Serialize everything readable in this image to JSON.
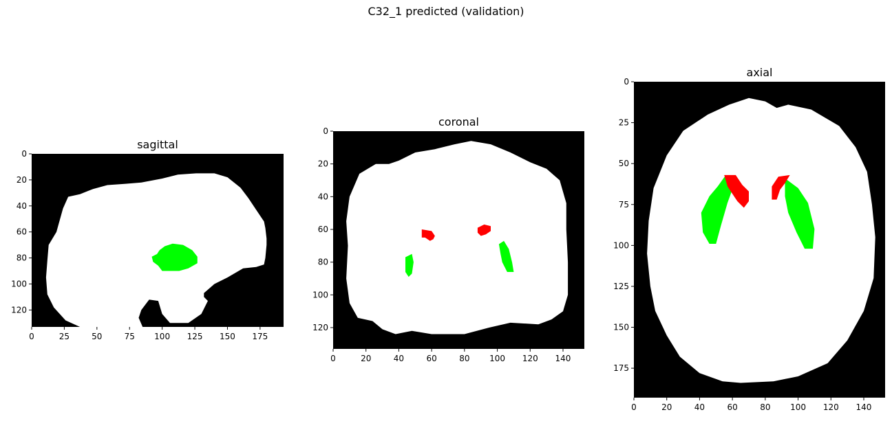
{
  "figure": {
    "title": "C32_1 predicted (validation)"
  },
  "colors": {
    "background": "#000000",
    "brain": "#ffffff",
    "label_red": "#ff0000",
    "label_green": "#00ff00"
  },
  "panels": [
    {
      "title": "sagittal",
      "xlim": [
        0,
        193
      ],
      "ylim": [
        133,
        0
      ],
      "xticks": [
        "0",
        "25",
        "50",
        "75",
        "100",
        "125",
        "150",
        "175"
      ],
      "yticks": [
        "0",
        "20",
        "40",
        "60",
        "80",
        "100",
        "120"
      ],
      "regions": [
        {
          "label": "brain",
          "color": "brain",
          "points": [
            [
              37,
              133
            ],
            [
              26,
              128
            ],
            [
              17,
              118
            ],
            [
              12,
              108
            ],
            [
              11,
              95
            ],
            [
              12,
              82
            ],
            [
              13,
              70
            ],
            [
              19,
              60
            ],
            [
              24,
              42
            ],
            [
              28,
              33
            ],
            [
              37,
              31
            ],
            [
              47,
              27
            ],
            [
              58,
              24
            ],
            [
              72,
              23
            ],
            [
              84,
              22
            ],
            [
              100,
              19
            ],
            [
              112,
              16
            ],
            [
              126,
              15
            ],
            [
              140,
              15
            ],
            [
              150,
              18
            ],
            [
              160,
              26
            ],
            [
              166,
              34
            ],
            [
              172,
              43
            ],
            [
              178,
              52
            ],
            [
              179,
              57
            ],
            [
              180,
              65
            ],
            [
              180,
              70
            ],
            [
              179,
              80
            ],
            [
              178,
              85
            ],
            [
              172,
              87
            ],
            [
              162,
              88
            ],
            [
              150,
              95
            ],
            [
              140,
              100
            ],
            [
              132,
              107
            ],
            [
              132,
              110
            ],
            [
              135,
              113
            ],
            [
              130,
              123
            ],
            [
              120,
              130
            ],
            [
              106,
              130
            ],
            [
              100,
              123
            ],
            [
              97,
              113
            ],
            [
              90,
              112
            ],
            [
              84,
              120
            ],
            [
              82,
              126
            ],
            [
              85,
              133
            ]
          ]
        },
        {
          "label": "green",
          "color": "label_green",
          "points": [
            [
              92,
              79
            ],
            [
              96,
              77
            ],
            [
              98,
              74
            ],
            [
              102,
              71
            ],
            [
              108,
              69
            ],
            [
              116,
              70
            ],
            [
              123,
              74
            ],
            [
              127,
              79
            ],
            [
              127,
              84
            ],
            [
              120,
              88
            ],
            [
              113,
              90
            ],
            [
              100,
              90
            ],
            [
              97,
              86
            ],
            [
              93,
              83
            ]
          ]
        }
      ]
    },
    {
      "title": "coronal",
      "xlim": [
        0,
        153
      ],
      "ylim": [
        133,
        0
      ],
      "xticks": [
        "0",
        "20",
        "40",
        "60",
        "80",
        "100",
        "120",
        "140"
      ],
      "yticks": [
        "0",
        "20",
        "40",
        "60",
        "80",
        "100",
        "120"
      ],
      "regions": [
        {
          "label": "brain",
          "color": "brain",
          "points": [
            [
              38,
              124
            ],
            [
              30,
              121
            ],
            [
              24,
              116
            ],
            [
              15,
              114
            ],
            [
              10,
              105
            ],
            [
              8,
              90
            ],
            [
              9,
              70
            ],
            [
              8,
              55
            ],
            [
              10,
              40
            ],
            [
              16,
              26
            ],
            [
              26,
              20
            ],
            [
              34,
              20
            ],
            [
              40,
              18
            ],
            [
              50,
              13
            ],
            [
              62,
              11
            ],
            [
              74,
              8
            ],
            [
              84,
              6
            ],
            [
              96,
              8
            ],
            [
              108,
              13
            ],
            [
              120,
              19
            ],
            [
              130,
              23
            ],
            [
              138,
              30
            ],
            [
              142,
              44
            ],
            [
              142,
              60
            ],
            [
              143,
              80
            ],
            [
              143,
              100
            ],
            [
              140,
              110
            ],
            [
              133,
              115
            ],
            [
              125,
              118
            ],
            [
              108,
              117
            ],
            [
              95,
              120
            ],
            [
              80,
              124
            ],
            [
              60,
              124
            ],
            [
              48,
              122
            ]
          ]
        },
        {
          "label": "red",
          "color": "label_red",
          "points": [
            [
              54,
              60
            ],
            [
              60,
              61
            ],
            [
              62,
              64
            ],
            [
              61,
              66
            ],
            [
              59,
              67
            ],
            [
              56,
              65
            ],
            [
              54,
              65
            ]
          ]
        },
        {
          "label": "red",
          "color": "label_red",
          "points": [
            [
              88,
              59
            ],
            [
              92,
              57
            ],
            [
              96,
              58
            ],
            [
              96,
              61
            ],
            [
              93,
              63
            ],
            [
              90,
              64
            ],
            [
              88,
              62
            ]
          ]
        },
        {
          "label": "green",
          "color": "label_green",
          "points": [
            [
              44,
              77
            ],
            [
              48,
              75
            ],
            [
              49,
              80
            ],
            [
              48,
              87
            ],
            [
              46,
              89
            ],
            [
              44,
              86
            ]
          ]
        },
        {
          "label": "green",
          "color": "label_green",
          "points": [
            [
              101,
              69
            ],
            [
              104,
              67
            ],
            [
              107,
              72
            ],
            [
              109,
              80
            ],
            [
              110,
              86
            ],
            [
              106,
              86
            ],
            [
              103,
              80
            ],
            [
              102,
              75
            ]
          ]
        }
      ]
    },
    {
      "title": "axial",
      "xlim": [
        0,
        153
      ],
      "ylim": [
        193,
        0
      ],
      "xticks": [
        "0",
        "20",
        "40",
        "60",
        "80",
        "100",
        "120",
        "140"
      ],
      "yticks": [
        "0",
        "25",
        "50",
        "75",
        "100",
        "125",
        "150",
        "175"
      ],
      "regions": [
        {
          "label": "brain",
          "color": "brain",
          "points": [
            [
              54,
              183
            ],
            [
              40,
              178
            ],
            [
              28,
              168
            ],
            [
              20,
              155
            ],
            [
              13,
              140
            ],
            [
              10,
              125
            ],
            [
              8,
              105
            ],
            [
              9,
              85
            ],
            [
              12,
              65
            ],
            [
              20,
              45
            ],
            [
              30,
              30
            ],
            [
              45,
              20
            ],
            [
              58,
              14
            ],
            [
              70,
              10
            ],
            [
              80,
              12
            ],
            [
              87,
              16
            ],
            [
              94,
              14
            ],
            [
              108,
              17
            ],
            [
              125,
              27
            ],
            [
              135,
              40
            ],
            [
              142,
              55
            ],
            [
              145,
              75
            ],
            [
              147,
              95
            ],
            [
              146,
              120
            ],
            [
              140,
              140
            ],
            [
              130,
              158
            ],
            [
              118,
              172
            ],
            [
              100,
              180
            ],
            [
              85,
              183
            ],
            [
              65,
              184
            ]
          ]
        },
        {
          "label": "green",
          "color": "label_green",
          "points": [
            [
              56,
              57
            ],
            [
              61,
              63
            ],
            [
              57,
              74
            ],
            [
              53,
              88
            ],
            [
              50,
              99
            ],
            [
              46,
              99
            ],
            [
              42,
              92
            ],
            [
              41,
              80
            ],
            [
              46,
              70
            ],
            [
              51,
              64
            ]
          ]
        },
        {
          "label": "green",
          "color": "label_green",
          "points": [
            [
              92,
              59
            ],
            [
              100,
              65
            ],
            [
              106,
              74
            ],
            [
              110,
              90
            ],
            [
              109,
              102
            ],
            [
              104,
              102
            ],
            [
              99,
              92
            ],
            [
              94,
              80
            ],
            [
              92,
              70
            ]
          ]
        },
        {
          "label": "red",
          "color": "label_red",
          "points": [
            [
              55,
              57
            ],
            [
              62,
              57
            ],
            [
              66,
              63
            ],
            [
              70,
              67
            ],
            [
              70,
              73
            ],
            [
              67,
              77
            ],
            [
              63,
              73
            ],
            [
              57,
              64
            ]
          ]
        },
        {
          "label": "red",
          "color": "label_red",
          "points": [
            [
              88,
              58
            ],
            [
              95,
              57
            ],
            [
              92,
              62
            ],
            [
              89,
              66
            ],
            [
              87,
              72
            ],
            [
              84,
              72
            ],
            [
              84,
              64
            ]
          ]
        }
      ]
    }
  ]
}
